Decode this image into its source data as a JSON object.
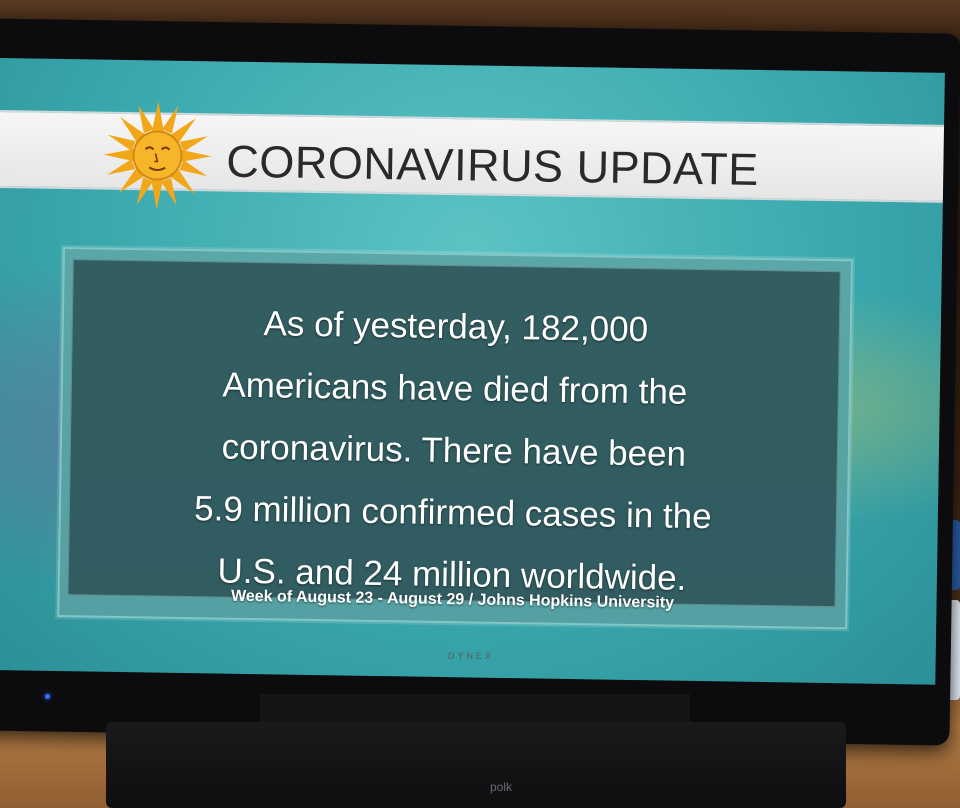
{
  "header": {
    "title": "CORONAVIRUS UPDATE"
  },
  "message": {
    "lines": [
      "As of yesterday, 182,000",
      "Americans have died from the",
      "coronavirus. There have been",
      "5.9 million confirmed cases in the",
      "U.S. and 24 million worldwide."
    ]
  },
  "footer": {
    "source": "Week of August 23 - August 29 / Johns Hopkins University"
  },
  "tv": {
    "brand": "DYNEX"
  },
  "soundbar": {
    "brand": "polk"
  },
  "colors": {
    "screen_teal": "#3aa9ae",
    "panel_dark": "#284b50",
    "header_white": "#f2f2f2",
    "sun_gold": "#f2a71b"
  }
}
